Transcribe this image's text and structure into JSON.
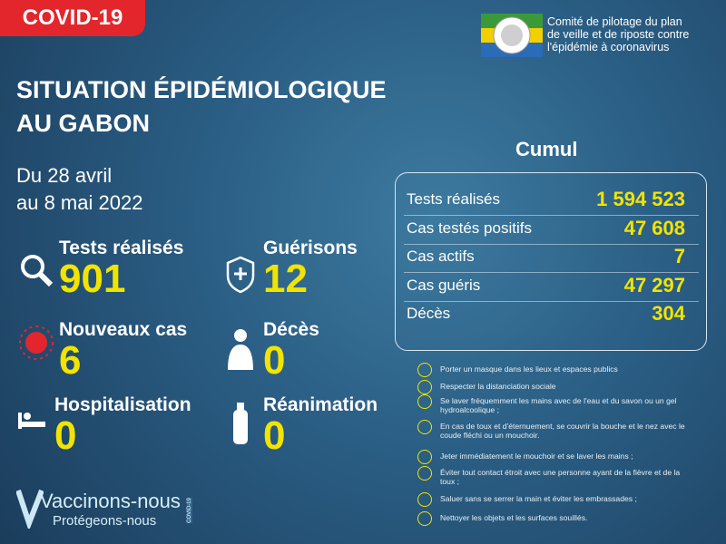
{
  "badge": "COVID-19",
  "organisation": [
    "Comité de pilotage du plan",
    "de veille et de riposte contre",
    "l'épidémie à coronavirus"
  ],
  "title": [
    "SITUATION ÉPIDÉMIOLOGIQUE",
    "AU GABON"
  ],
  "period": [
    "Du 28 avril",
    "au 8 mai  2022"
  ],
  "stats": [
    {
      "label": "Tests réalisés",
      "value": "901"
    },
    {
      "label": "Guérisons",
      "value": "12"
    },
    {
      "label": "Nouveaux cas",
      "value": "6"
    },
    {
      "label": "Décès",
      "value": "0"
    },
    {
      "label": "Hospitalisation",
      "value": "0"
    },
    {
      "label": "Réanimation",
      "value": "0"
    }
  ],
  "cumul": {
    "title": "Cumul",
    "rows": [
      {
        "label": "Tests réalisés",
        "value": "1 594 523"
      },
      {
        "label": "Cas testés positifs",
        "value": "47 608"
      },
      {
        "label": "Cas actifs",
        "value": "7"
      },
      {
        "label": "Cas guéris",
        "value": "47 297"
      },
      {
        "label": "Décès",
        "value": "304"
      }
    ]
  },
  "measures": [
    "Porter un masque dans les lieux et espaces publics",
    "Respecter la distanciation sociale",
    "Se laver fréquemment les mains avec de l'eau et du savon ou un gel hydroalcoolique ;",
    "En cas de toux et d'éternuement, se couvrir la bouche et le nez avec le coude fléchi ou un mouchoir.",
    "Jeter immédiatement le mouchoir et se laver les mains ;",
    "Éviter tout contact étroit avec une personne ayant de la fièvre et de la toux ;",
    "Saluer sans se serrer la main et éviter les embrassades ;",
    "Nettoyer les objets et les surfaces souillés."
  ],
  "footer": {
    "slogan": "Vaccinons-nous",
    "subslogan": "Protégeons-nous",
    "tag": "COVID-19"
  }
}
